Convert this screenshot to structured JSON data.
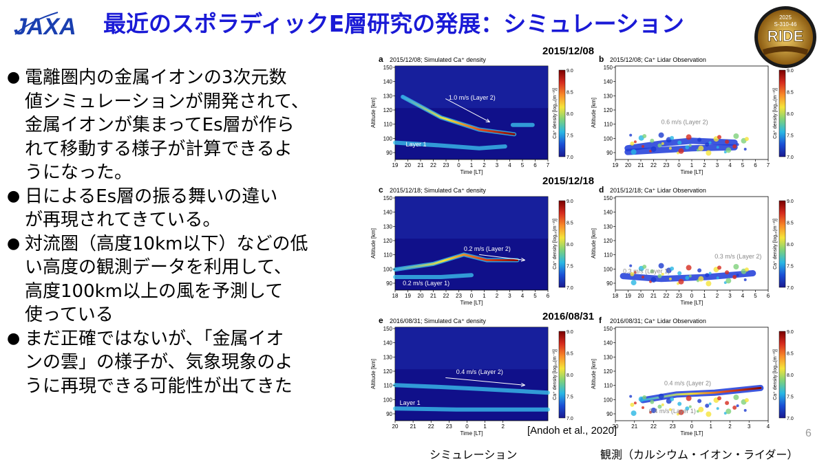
{
  "header": {
    "logo_text": "JAXA",
    "title": "最近のスポラディックE層研究の発展：シミュレーション",
    "badge": {
      "year": "2025",
      "code": "S-310-46",
      "name": "RIDE"
    }
  },
  "bullets": [
    {
      "text": "電離圏内の金属イオンの3次元数\n値シミュレーションが開発されて、\n金属イオンが集まってEs層が作ら\nれて移動する様子が計算できるよ\nうになった。"
    },
    {
      "text": "日によるEs層の振る舞いの違い\nが再現されてきている。"
    },
    {
      "text": "対流圏（高度10km以下）などの低\nい高度の観測データを利用して、\n高度100km以上の風を予測して\n使っている"
    },
    {
      "text": "まだ正確ではないが、「金属イオ\nンの雲」の様子が、気象現象のよ\nうに再現できる可能性が出てきた"
    }
  ],
  "bullet_symbol": "●",
  "figure": {
    "dates": [
      "2015/12/08",
      "2015/12/18",
      "2016/08/31"
    ],
    "panels": [
      {
        "letter": "a",
        "title": "2015/12/08; Simulated Ca⁺ density",
        "xticks": [
          "19",
          "20",
          "21",
          "22",
          "23",
          "0",
          "1",
          "2",
          "3",
          "4",
          "5",
          "6",
          "7"
        ],
        "annotations": [
          "1.0 m/s (Layer 2)",
          "Layer 1"
        ]
      },
      {
        "letter": "b",
        "title": "2015/12/08; Ca⁺ Lidar Observation",
        "xticks": [
          "19",
          "20",
          "21",
          "22",
          "23",
          "0",
          "1",
          "2",
          "3",
          "4",
          "5",
          "6",
          "7"
        ],
        "annotations": [
          "0.6 m/s (Layer 2)"
        ]
      },
      {
        "letter": "c",
        "title": "2015/12/18; Simulated Ca⁺ density",
        "xticks": [
          "18",
          "19",
          "20",
          "21",
          "22",
          "23",
          "0",
          "1",
          "2",
          "3",
          "4",
          "5",
          "6"
        ],
        "annotations": [
          "0.2 m/s (Layer 2)",
          "0.2 m/s (Layer 1)"
        ]
      },
      {
        "letter": "d",
        "title": "2015/12/18; Ca⁺ Lidar Observation",
        "xticks": [
          "18",
          "19",
          "20",
          "21",
          "22",
          "23",
          "0",
          "1",
          "2",
          "3",
          "4",
          "5",
          "6"
        ],
        "annotations": [
          "0.3 m/s (Layer 2)",
          "0.3 m/s (Layer 1)"
        ]
      },
      {
        "letter": "e",
        "title": "2016/08/31; Simulated Ca⁺ density",
        "xticks": [
          "20",
          "21",
          "22",
          "23",
          "0",
          "1",
          "2"
        ],
        "annotations": [
          "0.4 m/s (Layer 2)",
          "Layer 1"
        ]
      },
      {
        "letter": "f",
        "title": "2016/08/31; Ca⁺ Lidar Observation",
        "xticks": [
          "20",
          "21",
          "22",
          "23",
          "0",
          "1",
          "2",
          "3",
          "4"
        ],
        "annotations": [
          "0.4 m/s (Layer 2)",
          "0.4 m/s (Layer 1)"
        ]
      }
    ],
    "yticks": [
      "90",
      "100",
      "110",
      "120",
      "130",
      "140",
      "150"
    ],
    "ylabel": "Altitude [km]",
    "xlabel": "Time [LT]",
    "cbar_ticks": [
      "9.0",
      "8.5",
      "8.0",
      "7.5",
      "7.0"
    ],
    "cbar_label": "Ca⁺ density [log₁₀(m⁻³)]"
  },
  "citation": "[Andoh et al., 2020]",
  "page_number": "6",
  "caption_sim": "シミュレーション",
  "caption_obs": "観測（カルシウム・イオン・ライダー）"
}
